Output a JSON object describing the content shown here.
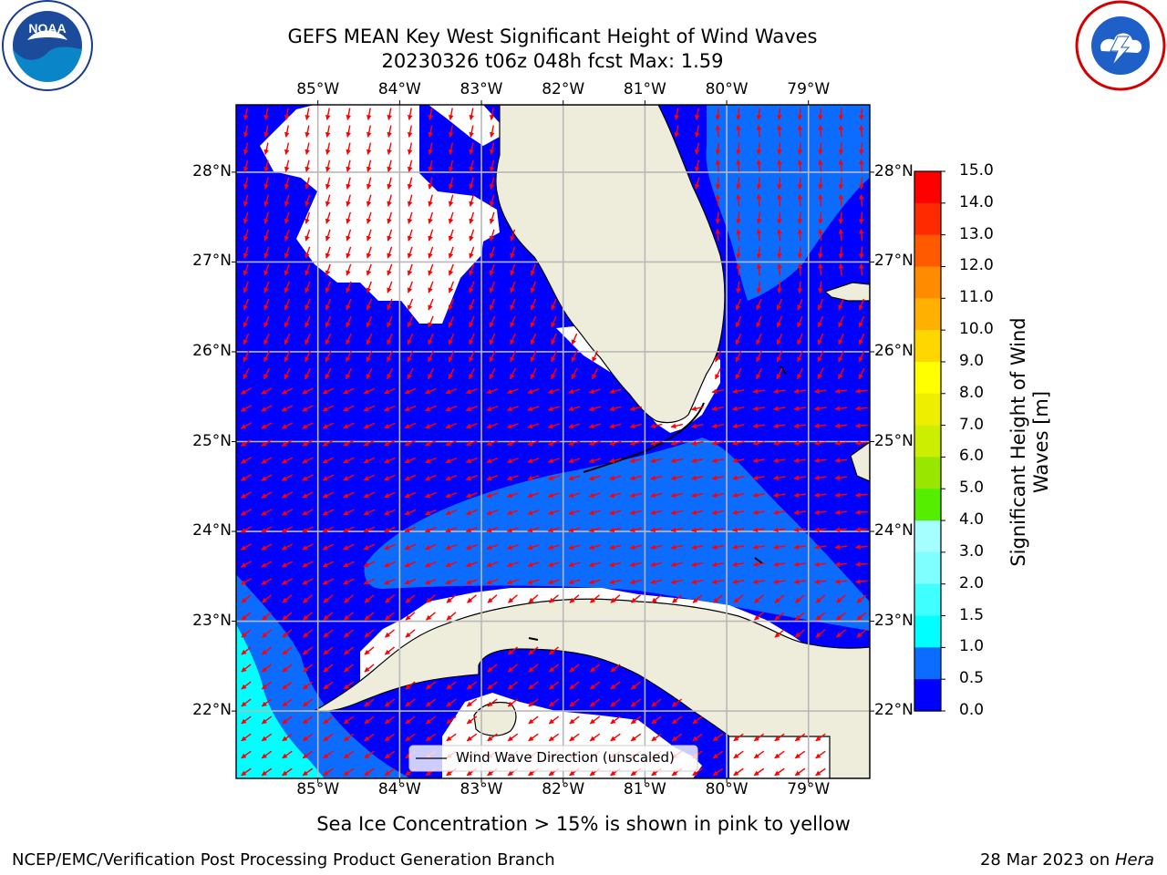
{
  "titles": {
    "line1": "GEFS MEAN Key West Significant Height of Wind Waves",
    "line2": "20230326 t06z 048h fcst   Max: 1.59"
  },
  "logos": {
    "left": "NOAA",
    "left_ring_text": "NATIONAL OCEANIC AND ATMOSPHERIC ADMINISTRATION · U.S. DEPARTMENT OF COMMERCE",
    "right_ring_text": "NATIONAL WEATHER SERVICE"
  },
  "legend": {
    "label": "Wind Wave Direction (unscaled)"
  },
  "colorbar": {
    "label_line1": "Significant Height of Wind",
    "label_line2": "Waves [m]",
    "ticks": [
      "15.0",
      "14.0",
      "13.0",
      "12.0",
      "11.0",
      "10.0",
      "9.0",
      "8.0",
      "7.0",
      "6.0",
      "5.0",
      "4.0",
      "3.0",
      "2.0",
      "1.5",
      "1.0",
      "0.5",
      "0.0"
    ],
    "colors": [
      "#0000ff",
      "#0c6cff",
      "#00ffff",
      "#40ffff",
      "#7fffff",
      "#a6ffff",
      "#4cff7f",
      "#00ff00",
      "#55ee00",
      "#99e600",
      "#ccee00",
      "#eeee00",
      "#ffff00",
      "#ffd700",
      "#ffb000",
      "#ff8c00",
      "#ff5a00",
      "#ff2a00",
      "#ff0000"
    ]
  },
  "notes": {
    "sea_ice": "Sea Ice Concentration > 15% is shown in pink to yellow",
    "producer": "NCEP/EMC/Verification Post Processing Product Generation Branch",
    "date_prefix": "28 Mar 2023 on ",
    "date_host": "Hera"
  },
  "chart_data": {
    "type": "heatmap",
    "title": "GEFS MEAN Key West Significant Height of Wind Waves",
    "subtitle": "20230326 t06z 048h fcst   Max: 1.59",
    "variable": "Significant Height of Wind Waves",
    "unit": "m",
    "max_value": 1.59,
    "x_ticks": [
      "85°W",
      "84°W",
      "83°W",
      "82°W",
      "81°W",
      "80°W",
      "79°W"
    ],
    "y_ticks": [
      "28°N",
      "27°N",
      "26°N",
      "25°N",
      "24°N",
      "23°N",
      "22°N"
    ],
    "xlim": [
      -86,
      -78.25
    ],
    "ylim": [
      21.25,
      28.75
    ],
    "grid": true,
    "colorbar_levels": [
      0.0,
      0.5,
      1.0,
      1.5,
      2.0,
      3.0,
      4.0,
      5.0,
      6.0,
      7.0,
      8.0,
      9.0,
      10.0,
      11.0,
      12.0,
      13.0,
      14.0,
      15.0
    ],
    "vector_field": "Wind Wave Direction (unscaled)",
    "colors": {
      "ocean_low": "#0000ff",
      "ocean_mid": "#0c6cff",
      "ocean_high": "#00ffff",
      "land": "#eeeddc",
      "arrows": "#ff0000"
    }
  }
}
